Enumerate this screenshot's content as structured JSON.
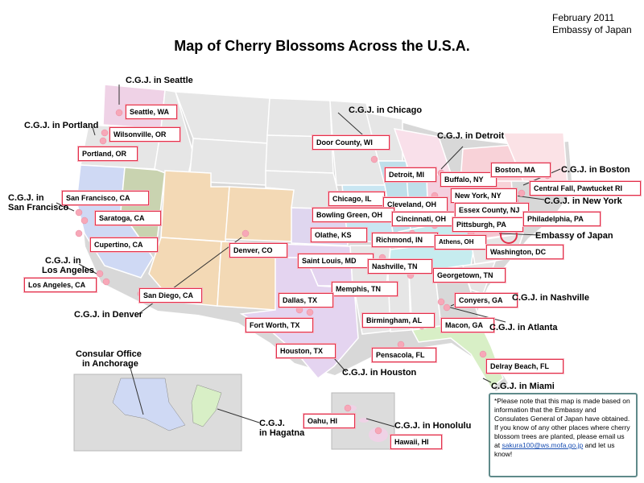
{
  "header": {
    "date": "February 2011",
    "org": "Embassy of Japan",
    "title": "Map of Cherry Blossoms Across the U.S.A."
  },
  "cities": [
    {
      "label": "Seattle, WA"
    },
    {
      "label": "Wilsonville, OR"
    },
    {
      "label": "Portland, OR"
    },
    {
      "label": "San Francisco, CA"
    },
    {
      "label": "Saratoga, CA"
    },
    {
      "label": "Cupertino, CA"
    },
    {
      "label": "Los Angeles, CA"
    },
    {
      "label": "San Diego, CA"
    },
    {
      "label": "Denver, CO"
    },
    {
      "label": "Door County, WI"
    },
    {
      "label": "Detroit, MI"
    },
    {
      "label": "Chicago, IL"
    },
    {
      "label": "Cleveland, OH"
    },
    {
      "label": "Bowling Green, OH"
    },
    {
      "label": "Cincinnati, OH"
    },
    {
      "label": "Olathe, KS"
    },
    {
      "label": "Richmond, IN"
    },
    {
      "label": "Athens, OH"
    },
    {
      "label": "Saint Louis, MD"
    },
    {
      "label": "Nashville, TN"
    },
    {
      "label": "Memphis, TN"
    },
    {
      "label": "Dallas, TX"
    },
    {
      "label": "Fort Worth, TX"
    },
    {
      "label": "Houston, TX"
    },
    {
      "label": "Birmingham, AL"
    },
    {
      "label": "Pensacola, FL"
    },
    {
      "label": "Georgetown, TN"
    },
    {
      "label": "Conyers, GA"
    },
    {
      "label": "Macon, GA"
    },
    {
      "label": "Delray Beach, FL"
    },
    {
      "label": "Buffalo, NY"
    },
    {
      "label": "Boston, MA"
    },
    {
      "label": "Central Fall, Pawtucket RI"
    },
    {
      "label": "New York, NY"
    },
    {
      "label": "Essex County, NJ"
    },
    {
      "label": "Pittsburgh, PA"
    },
    {
      "label": "Philadelphia, PA"
    },
    {
      "label": "Washington, DC"
    },
    {
      "label": "Oahu, HI"
    },
    {
      "label": "Hawaii, HI"
    }
  ],
  "consulates": [
    {
      "label": "C.G.J. in Seattle"
    },
    {
      "label": "C.G.J. in Portland"
    },
    {
      "label": "C.G.J. in"
    },
    {
      "label": "San Francisco"
    },
    {
      "label": "C.G.J. in"
    },
    {
      "label": "Los Angeles"
    },
    {
      "label": "C.G.J. in Denver"
    },
    {
      "label": "C.G.J. in Chicago"
    },
    {
      "label": "C.G.J. in Detroit"
    },
    {
      "label": "C.G.J. in Boston"
    },
    {
      "label": "C.G.J. in New York"
    },
    {
      "label": "Embassy of Japan"
    },
    {
      "label": "C.G.J.  in  Nashville"
    },
    {
      "label": "C.G.J. in Atlanta"
    },
    {
      "label": "C.G.J. in Houston"
    },
    {
      "label": "C.G.J. in Miami"
    },
    {
      "label": "Consular Office"
    },
    {
      "label": "in Anchorage"
    },
    {
      "label": "C.G.J."
    },
    {
      "label": "in Hagatna"
    },
    {
      "label": "C.G.J. in Honolulu"
    }
  ],
  "note": {
    "text": "*Please note that this map is made based on information that the Embassy and Consulates General of Japan have obtained.  If you know of any other places where cherry blossom trees are planted, please email us at",
    "email": "sakura100@ws.mofa.go.jp",
    "suffix": " and let us know!"
  },
  "colors": {
    "label_border": "#e2304a",
    "blossom": "#f7a8b8",
    "embassy_circle": "#e2304a"
  }
}
